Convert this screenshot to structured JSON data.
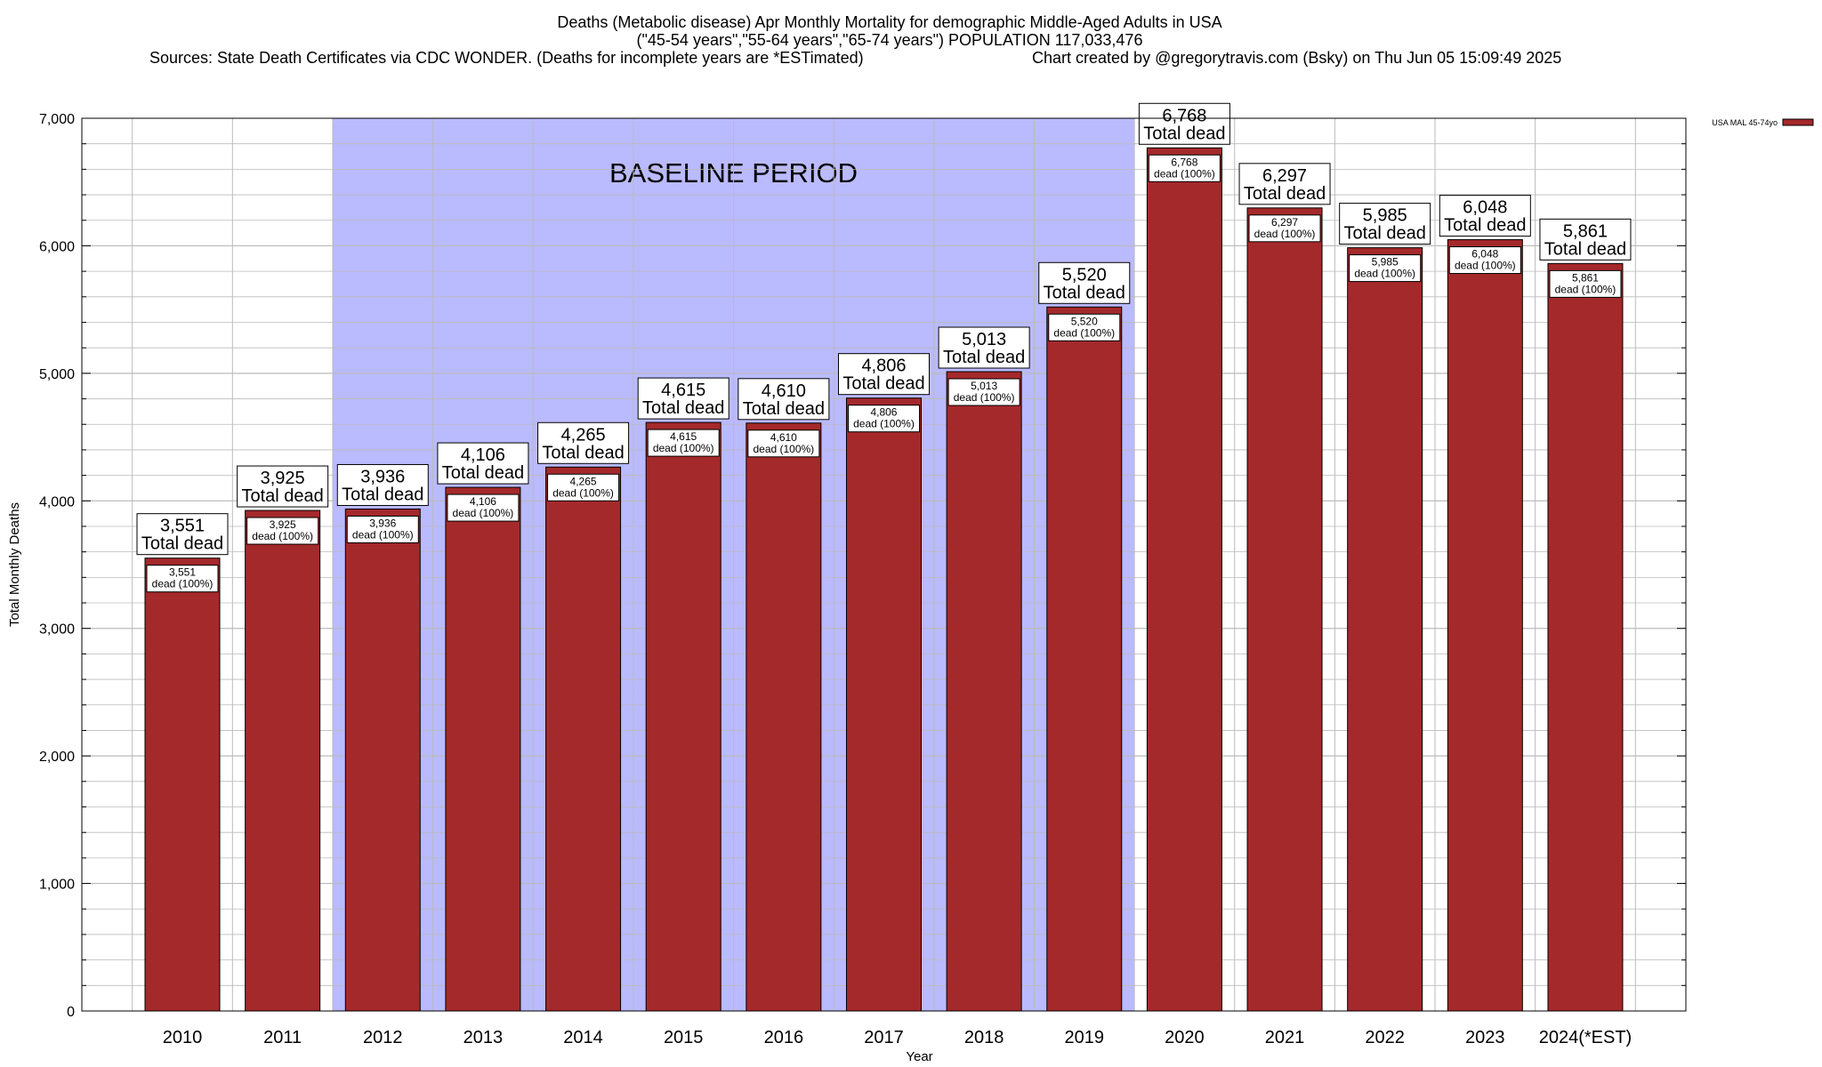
{
  "header": {
    "line1": "Deaths (Metabolic disease) Apr Monthly Mortality for demographic Middle-Aged Adults in USA",
    "line2": "(\"45-54 years\",\"55-64 years\",\"65-74 years\") POPULATION 117,033,476",
    "line3_left": "Sources: State Death Certificates via CDC WONDER. (Deaths for incomplete years are *ESTimated)",
    "line3_right": "Chart created by @gregorytravis.com (Bsky) on Thu Jun 05 15:09:49 2025"
  },
  "chart_data": {
    "type": "bar",
    "categories": [
      "2010",
      "2011",
      "2012",
      "2013",
      "2014",
      "2015",
      "2016",
      "2017",
      "2018",
      "2019",
      "2020",
      "2021",
      "2022",
      "2023",
      "2024(*EST)"
    ],
    "series": [
      {
        "name": "USA MAL 45-74yo",
        "values": [
          3551,
          3925,
          3936,
          4106,
          4265,
          4615,
          4610,
          4806,
          5013,
          5520,
          6768,
          6297,
          5985,
          6048,
          5861
        ]
      }
    ],
    "value_labels": [
      "3,551",
      "3,925",
      "3,936",
      "4,106",
      "4,265",
      "4,615",
      "4,610",
      "4,806",
      "5,013",
      "5,520",
      "6,768",
      "6,297",
      "5,985",
      "6,048",
      "5,861"
    ],
    "top_label_suffix": "Total dead",
    "inner_label_suffix": "dead (100%)",
    "xlabel": "Year",
    "ylabel": "Total Monthly Deaths",
    "ylim": [
      0,
      7000
    ],
    "yticks": [
      0,
      1000,
      2000,
      3000,
      4000,
      5000,
      6000,
      7000
    ],
    "ytick_labels": [
      "0",
      "1,000",
      "2,000",
      "3,000",
      "4,000",
      "5,000",
      "6,000",
      "7,000"
    ],
    "grid": true,
    "legend_position": "top-right",
    "baseline_period": {
      "label": "BASELINE PERIOD",
      "start": "2012",
      "end": "2019"
    },
    "colors": {
      "bar": "#a4292b",
      "bar_outline": "#000000",
      "baseline_band": "#babaff",
      "grid": "#bbbbbb"
    }
  }
}
